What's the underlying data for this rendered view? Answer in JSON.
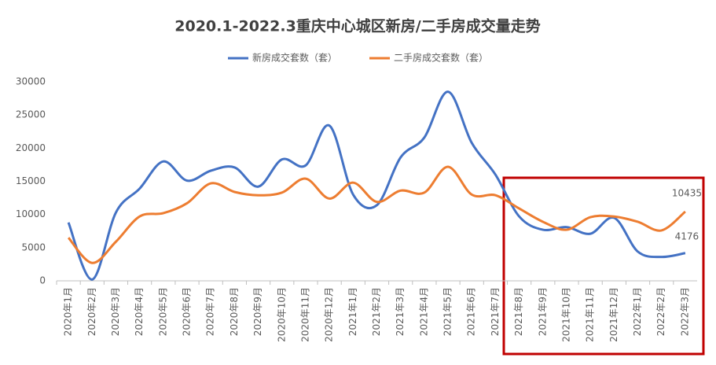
{
  "chart_data": {
    "type": "line",
    "title": "2020.1-2022.3重庆中心城区新房/二手房成交量走势",
    "categories": [
      "2020年1月",
      "2020年2月",
      "2020年3月",
      "2020年4月",
      "2020年5月",
      "2020年6月",
      "2020年7月",
      "2020年8月",
      "2020年9月",
      "2020年10月",
      "2020年11月",
      "2020年12月",
      "2021年1月",
      "2021年2月",
      "2021年3月",
      "2021年4月",
      "2021年5月",
      "2021年6月",
      "2021年7月",
      "2021年8月",
      "2021年9月",
      "2021年10月",
      "2021年11月",
      "2021年12月",
      "2022年1月",
      "2022年2月",
      "2022年3月"
    ],
    "series": [
      {
        "name": "新房成交套数（套）",
        "color": "#4472c4",
        "values": [
          8800,
          200,
          10300,
          13900,
          18000,
          15100,
          16600,
          17100,
          14200,
          18300,
          17400,
          23400,
          13000,
          11400,
          18600,
          21600,
          28500,
          20800,
          16000,
          9700,
          7700,
          8100,
          7100,
          9500,
          4400,
          3600,
          4176
        ]
      },
      {
        "name": "二手房成交套数（套）",
        "color": "#ed7d31",
        "values": [
          6500,
          2700,
          5900,
          9700,
          10200,
          11700,
          14700,
          13400,
          12900,
          13300,
          15400,
          12400,
          14800,
          11900,
          13600,
          13300,
          17200,
          13000,
          12900,
          10900,
          8900,
          7700,
          9600,
          9700,
          8900,
          7600,
          10435
        ]
      }
    ],
    "ylim": [
      0,
      30000
    ],
    "yticks": [
      0,
      5000,
      10000,
      15000,
      20000,
      25000,
      30000
    ],
    "grid": false
  }
}
